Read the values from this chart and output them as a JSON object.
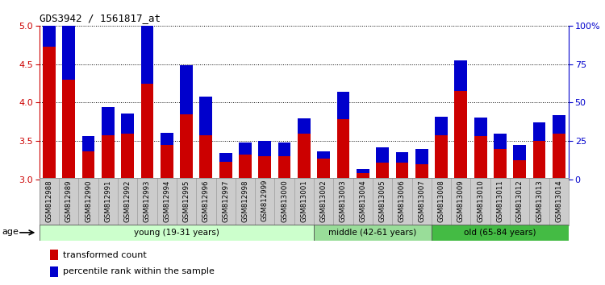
{
  "title": "GDS3942 / 1561817_at",
  "samples": [
    "GSM812988",
    "GSM812989",
    "GSM812990",
    "GSM812991",
    "GSM812992",
    "GSM812993",
    "GSM812994",
    "GSM812995",
    "GSM812996",
    "GSM812997",
    "GSM812998",
    "GSM812999",
    "GSM813000",
    "GSM813001",
    "GSM813002",
    "GSM813003",
    "GSM813004",
    "GSM813005",
    "GSM813006",
    "GSM813007",
    "GSM813008",
    "GSM813009",
    "GSM813010",
    "GSM813011",
    "GSM813012",
    "GSM813013",
    "GSM813014"
  ],
  "red_values": [
    4.73,
    4.3,
    3.37,
    3.58,
    3.6,
    4.25,
    3.45,
    3.85,
    3.58,
    3.23,
    3.32,
    3.3,
    3.3,
    3.6,
    3.27,
    3.78,
    3.08,
    3.22,
    3.22,
    3.2,
    3.58,
    4.15,
    3.57,
    3.4,
    3.25,
    3.5,
    3.6
  ],
  "blue_percentiles": [
    63,
    45,
    10,
    18,
    13,
    42,
    8,
    32,
    25,
    6,
    8,
    10,
    9,
    10,
    5,
    18,
    3,
    10,
    7,
    10,
    12,
    20,
    12,
    10,
    10,
    12,
    12
  ],
  "groups": [
    {
      "label": "young (19-31 years)",
      "start": 0,
      "end": 14,
      "color": "#ccffcc"
    },
    {
      "label": "middle (42-61 years)",
      "start": 14,
      "end": 20,
      "color": "#99dd99"
    },
    {
      "label": "old (65-84 years)",
      "start": 20,
      "end": 27,
      "color": "#44bb44"
    }
  ],
  "ylim_left": [
    3.0,
    5.0
  ],
  "ylim_right": [
    0,
    100
  ],
  "yticks_left": [
    3.0,
    3.5,
    4.0,
    4.5,
    5.0
  ],
  "yticks_right": [
    0,
    25,
    50,
    75,
    100
  ],
  "ytick_labels_right": [
    "0",
    "25",
    "50",
    "75",
    "100%"
  ],
  "red_color": "#cc0000",
  "blue_color": "#0000cc",
  "left_tick_color": "#cc0000",
  "right_tick_color": "#0000cc",
  "legend1": "transformed count",
  "legend2": "percentile rank within the sample",
  "age_label": "age"
}
